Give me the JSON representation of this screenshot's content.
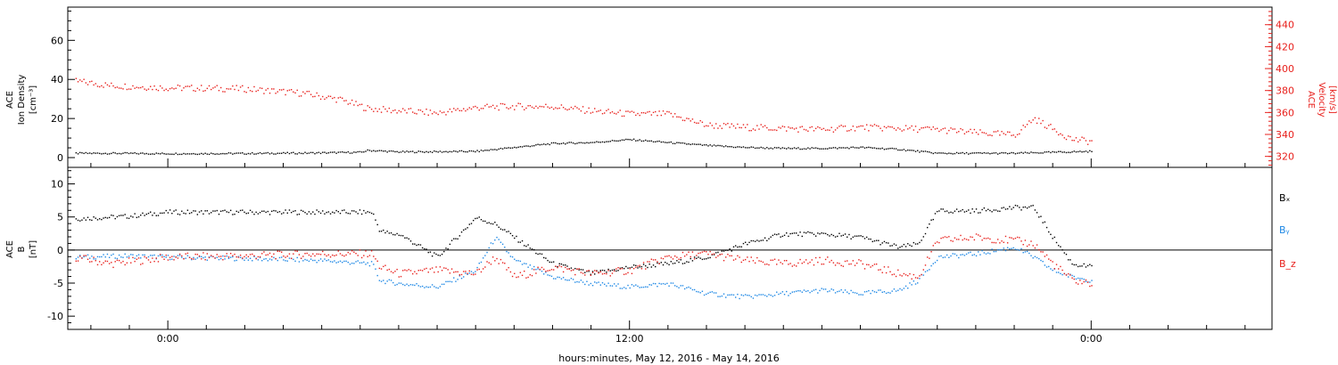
{
  "colors": {
    "axis": "#000000",
    "density": "#000000",
    "velocity": "#e8201c",
    "bx": "#000000",
    "by": "#1e88e5",
    "bz": "#e8201c"
  },
  "chart_data": [
    {
      "type": "scatter",
      "panel": "top",
      "ylabel_left": [
        "ACE",
        "Ion Density",
        "[cm⁻³]"
      ],
      "ylabel_right": [
        "ACE",
        "Velocity",
        "[km/s]"
      ],
      "ylim_left": [
        -5,
        77
      ],
      "yticks_left": [
        0,
        20,
        40,
        60
      ],
      "ylim_right": [
        310,
        456
      ],
      "yticks_right": [
        320,
        340,
        360,
        380,
        400,
        420,
        440
      ],
      "x_units": "hours relative to May 13, 2016 00:00",
      "xlim": [
        -2.6,
        28.7
      ],
      "series": [
        {
          "axis": "left",
          "color_key": "density",
          "x": [
            -2.4,
            -1.5,
            0,
            2,
            3.5,
            5,
            5.2,
            6,
            7,
            8,
            9,
            10,
            11,
            12,
            13,
            14,
            15,
            16,
            17,
            18,
            19,
            20,
            21,
            22,
            23,
            24.0
          ],
          "y": [
            2.5,
            2.5,
            2.3,
            2.4,
            2.6,
            3.0,
            4.0,
            3.2,
            3.3,
            3.5,
            5.5,
            7.5,
            8.0,
            9.5,
            8.0,
            6.5,
            5.5,
            5.0,
            5.0,
            5.5,
            4.5,
            2.5,
            2.5,
            2.5,
            3.0,
            3.5
          ]
        },
        {
          "axis": "right",
          "color_key": "velocity",
          "x": [
            -2.4,
            -1.5,
            0,
            2,
            3.5,
            4.5,
            5.2,
            6,
            7,
            8,
            9,
            10,
            11,
            12,
            13,
            14,
            15,
            16,
            17,
            18,
            19,
            20,
            21,
            22,
            22.5,
            23.5,
            24.0
          ],
          "y": [
            389,
            385,
            383,
            382,
            378,
            372,
            364,
            362,
            360,
            365,
            366,
            366,
            362,
            359,
            359,
            349,
            347,
            346,
            345,
            347,
            346,
            345,
            342,
            340,
            355,
            336,
            334
          ]
        }
      ]
    },
    {
      "type": "scatter",
      "panel": "bottom",
      "ylabel_left": [
        "ACE",
        "B",
        "[nT]"
      ],
      "ylim": [
        -12,
        12.5
      ],
      "yticks": [
        -10,
        -5,
        0,
        5,
        10
      ],
      "zero_line": true,
      "x_units": "hours relative to May 13, 2016 00:00",
      "xlim": [
        -2.6,
        28.7
      ],
      "xticks_major": [
        0,
        12,
        24
      ],
      "xticklabels": [
        "0:00",
        "12:00",
        "0:00"
      ],
      "xlabel": "hours:minutes, May 12, 2016 - May 14, 2016",
      "legend": [
        "Bₓ",
        "Bᵧ",
        "B_z"
      ],
      "legend_placement": "right",
      "series": [
        {
          "name": "Bₓ",
          "color_key": "bx",
          "x": [
            -2.4,
            -1.0,
            0,
            2,
            4,
            5.3,
            5.5,
            5.8,
            6,
            7,
            8,
            8.5,
            9,
            10,
            11,
            12,
            13,
            14,
            15,
            16,
            17,
            18,
            19,
            19.5,
            20,
            21,
            22,
            22.5,
            23,
            23.5,
            24.0
          ],
          "y": [
            4.8,
            5.2,
            5.8,
            5.8,
            5.8,
            5.8,
            3.0,
            2.5,
            2.5,
            -1.0,
            5.0,
            4.0,
            2.0,
            -2.0,
            -3.5,
            -2.5,
            -2.0,
            -1.0,
            1.0,
            2.5,
            2.5,
            2.0,
            0.5,
            1.0,
            6.0,
            6.0,
            6.5,
            6.5,
            2.0,
            -2.0,
            -2.5
          ]
        },
        {
          "name": "Bᵧ",
          "color_key": "by",
          "x": [
            -2.4,
            -1.0,
            0,
            2,
            4,
            5.3,
            5.5,
            6,
            7,
            8,
            8.5,
            9,
            10,
            11,
            12,
            13,
            14,
            15,
            16,
            17,
            18,
            19,
            19.5,
            20,
            21,
            22,
            22.5,
            23,
            23.5,
            24.0
          ],
          "y": [
            -1.0,
            -0.8,
            -1.0,
            -1.2,
            -1.5,
            -2.0,
            -4.5,
            -5.0,
            -5.5,
            -3.0,
            2.0,
            -1.5,
            -4.0,
            -5.0,
            -5.5,
            -5.0,
            -6.5,
            -7.0,
            -6.5,
            -6.0,
            -6.5,
            -6.0,
            -4.5,
            -1.0,
            -0.5,
            0.5,
            -1.0,
            -3.0,
            -4.0,
            -4.5
          ]
        },
        {
          "name": "B_z",
          "color_key": "bz",
          "x": [
            -2.4,
            -1.5,
            0,
            2,
            4,
            5.3,
            5.5,
            6,
            7,
            8,
            8.5,
            9,
            10,
            11,
            12,
            13,
            14,
            15,
            16,
            17,
            18,
            19,
            19.5,
            20,
            21,
            22,
            22.5,
            23,
            23.5,
            24.0
          ],
          "y": [
            -1.0,
            -2.0,
            -1.0,
            -0.8,
            -0.5,
            -0.5,
            -2.5,
            -3.5,
            -3.0,
            -3.5,
            -1.0,
            -4.0,
            -2.5,
            -3.5,
            -3.0,
            -1.0,
            -0.5,
            -1.5,
            -2.0,
            -1.5,
            -2.0,
            -3.5,
            -4.0,
            1.5,
            2.0,
            1.5,
            1.0,
            -2.0,
            -4.5,
            -5.0
          ]
        }
      ]
    }
  ]
}
